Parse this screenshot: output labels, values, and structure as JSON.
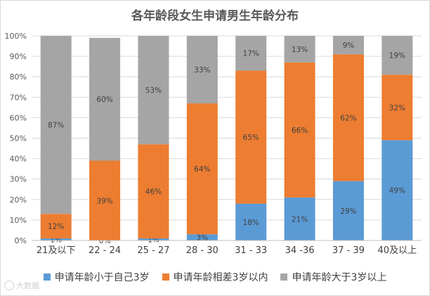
{
  "chart_data": {
    "type": "bar",
    "stacked": true,
    "normalized": true,
    "title": "各年龄段女生申请男生年龄分布",
    "categories": [
      "21及以下",
      "22 - 24",
      "25 - 27",
      "28 - 30",
      "31 - 33",
      "34 -36",
      "37 - 39",
      "40及以上"
    ],
    "series": [
      {
        "name": "申请年龄小于自己3岁",
        "color": "#5b9bd5",
        "values": [
          1,
          0,
          1,
          3,
          18,
          21,
          29,
          49
        ]
      },
      {
        "name": "申请年龄相差3岁以内",
        "color": "#ed7d31",
        "values": [
          12,
          39,
          46,
          64,
          65,
          66,
          62,
          32
        ]
      },
      {
        "name": "申请年龄大于3岁以上",
        "color": "#a5a5a5",
        "values": [
          87,
          60,
          53,
          33,
          17,
          13,
          9,
          19
        ]
      }
    ],
    "y_ticks": [
      "0%",
      "10%",
      "20%",
      "30%",
      "40%",
      "50%",
      "60%",
      "70%",
      "80%",
      "90%",
      "100%"
    ],
    "ylim": [
      0,
      100
    ],
    "grid": true,
    "legend": "bottom"
  },
  "watermark": "大数据"
}
